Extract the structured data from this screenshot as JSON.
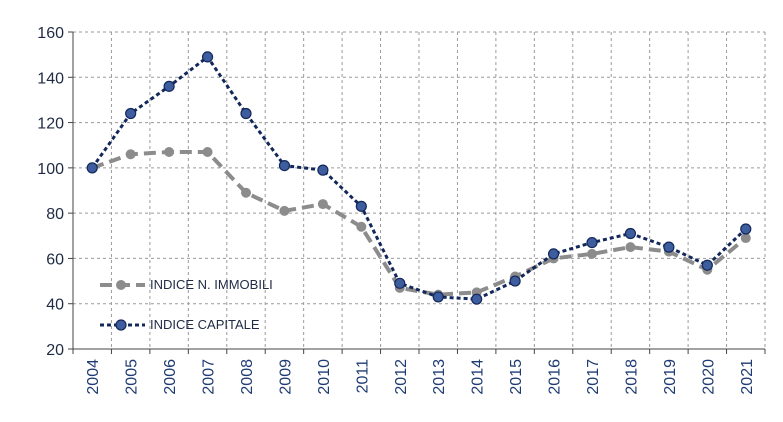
{
  "chart_data": {
    "type": "line",
    "categories": [
      "2004",
      "2005",
      "2006",
      "2007",
      "2008",
      "2009",
      "2010",
      "2011",
      "2012",
      "2013",
      "2014",
      "2015",
      "2016",
      "2017",
      "2018",
      "2019",
      "2020",
      "2021"
    ],
    "series": [
      {
        "name": "INDICE N. IMMOBILI",
        "color": "#8c8c8c",
        "values": [
          100,
          106,
          107,
          107,
          89,
          81,
          84,
          74,
          47,
          44,
          45,
          52,
          60,
          62,
          65,
          63,
          55,
          69
        ]
      },
      {
        "name": "INDICE CAPITALE",
        "color": "#13285a",
        "values": [
          100,
          124,
          136,
          149,
          124,
          101,
          99,
          83,
          49,
          43,
          42,
          50,
          62,
          67,
          71,
          65,
          57,
          73
        ]
      }
    ],
    "ylim": [
      20,
      160
    ],
    "yticks": [
      "20",
      "40",
      "60",
      "80",
      "100",
      "120",
      "140",
      "160"
    ],
    "title": "",
    "xlabel": "",
    "ylabel": "",
    "legend_position": "bottom-left",
    "grid": true
  }
}
